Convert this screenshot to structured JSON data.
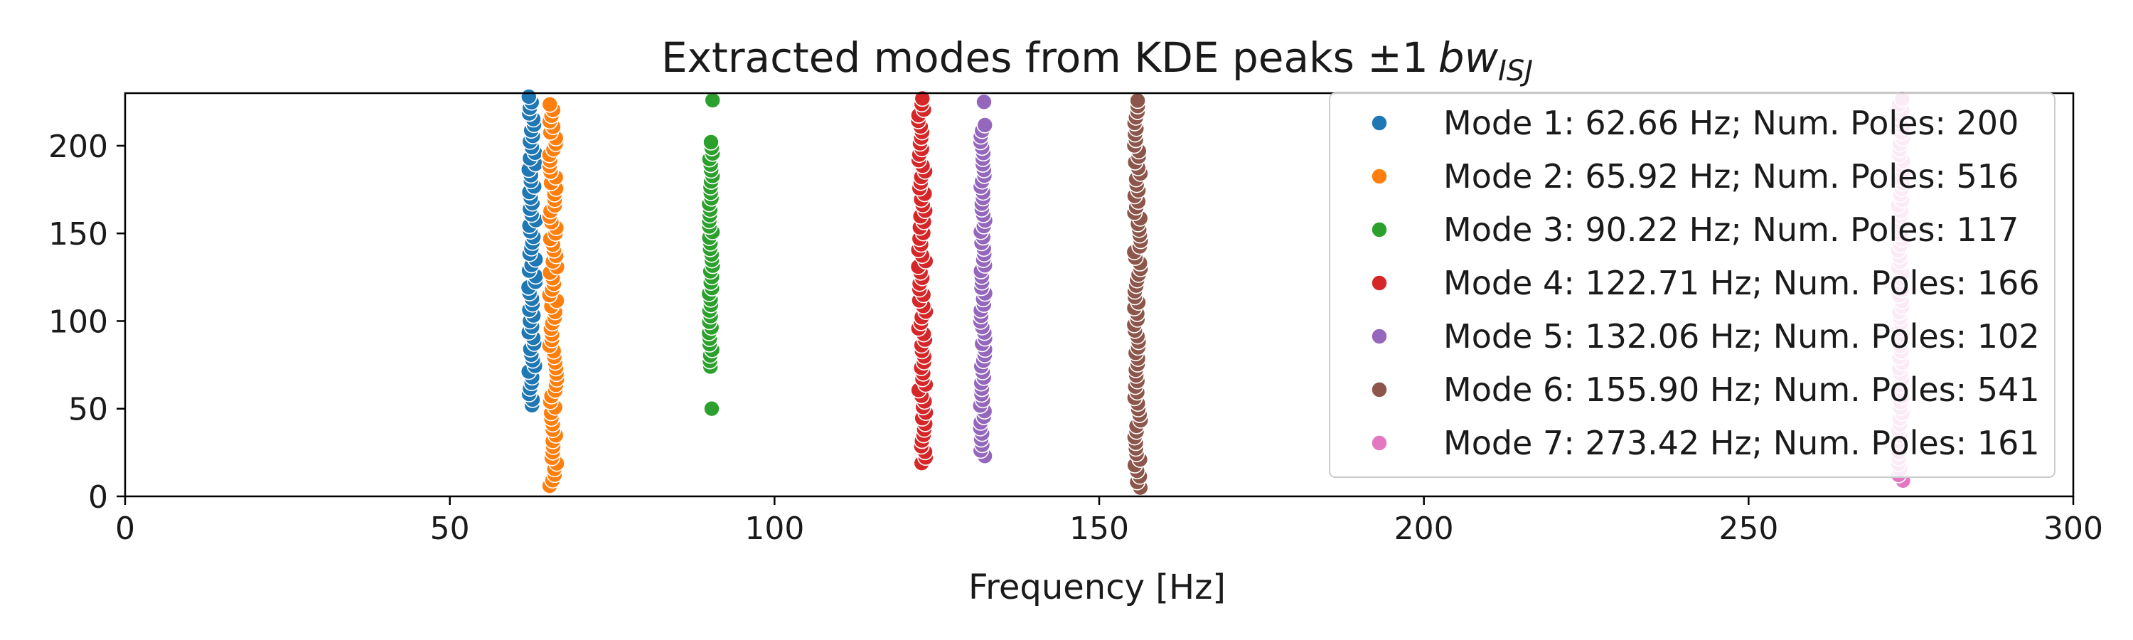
{
  "chart_data": {
    "type": "scatter",
    "title": "Extracted modes from KDE peaks ±1",
    "title_math": "bw",
    "title_math_sub": "ISJ",
    "xlabel": "Frequency [Hz]",
    "ylabel": "",
    "xlim": [
      0,
      300
    ],
    "ylim": [
      0,
      230
    ],
    "xticks": [
      0,
      50,
      100,
      150,
      200,
      250,
      300
    ],
    "yticks": [
      0,
      50,
      100,
      150,
      200
    ],
    "grid": false,
    "legend_position": "top-right",
    "series": [
      {
        "name": "Mode 1: 62.66 Hz; Num. Poles: 200",
        "color": "#1f77b4",
        "x": 62.66,
        "x_spread": 0.6,
        "y_min": 52,
        "y_max": 228
      },
      {
        "name": "Mode 2: 65.92 Hz; Num. Poles: 516",
        "color": "#ff7f0e",
        "x": 65.92,
        "x_spread": 0.6,
        "y_min": 6,
        "y_max": 226
      },
      {
        "name": "Mode 3: 90.22 Hz; Num. Poles: 117",
        "color": "#2ca02c",
        "x": 90.22,
        "x_spread": 0.3,
        "y_min": 74,
        "y_max": 204,
        "extra_y": [
          226,
          50
        ]
      },
      {
        "name": "Mode 4: 122.71 Hz; Num. Poles: 166",
        "color": "#d62728",
        "x": 122.71,
        "x_spread": 0.6,
        "y_min": 19,
        "y_max": 228
      },
      {
        "name": "Mode 5: 132.06 Hz; Num. Poles: 102",
        "color": "#9467bd",
        "x": 132.06,
        "x_spread": 0.4,
        "y_min": 23,
        "y_max": 212,
        "extra_y": [
          225
        ]
      },
      {
        "name": "Mode 6: 155.90 Hz; Num. Poles: 541",
        "color": "#8c564b",
        "x": 155.9,
        "x_spread": 0.5,
        "y_min": 5,
        "y_max": 228
      },
      {
        "name": "Mode 7: 273.42 Hz; Num. Poles: 161",
        "color": "#e377c2",
        "x": 273.42,
        "x_spread": 0.4,
        "y_min": 9,
        "y_max": 228
      }
    ]
  }
}
